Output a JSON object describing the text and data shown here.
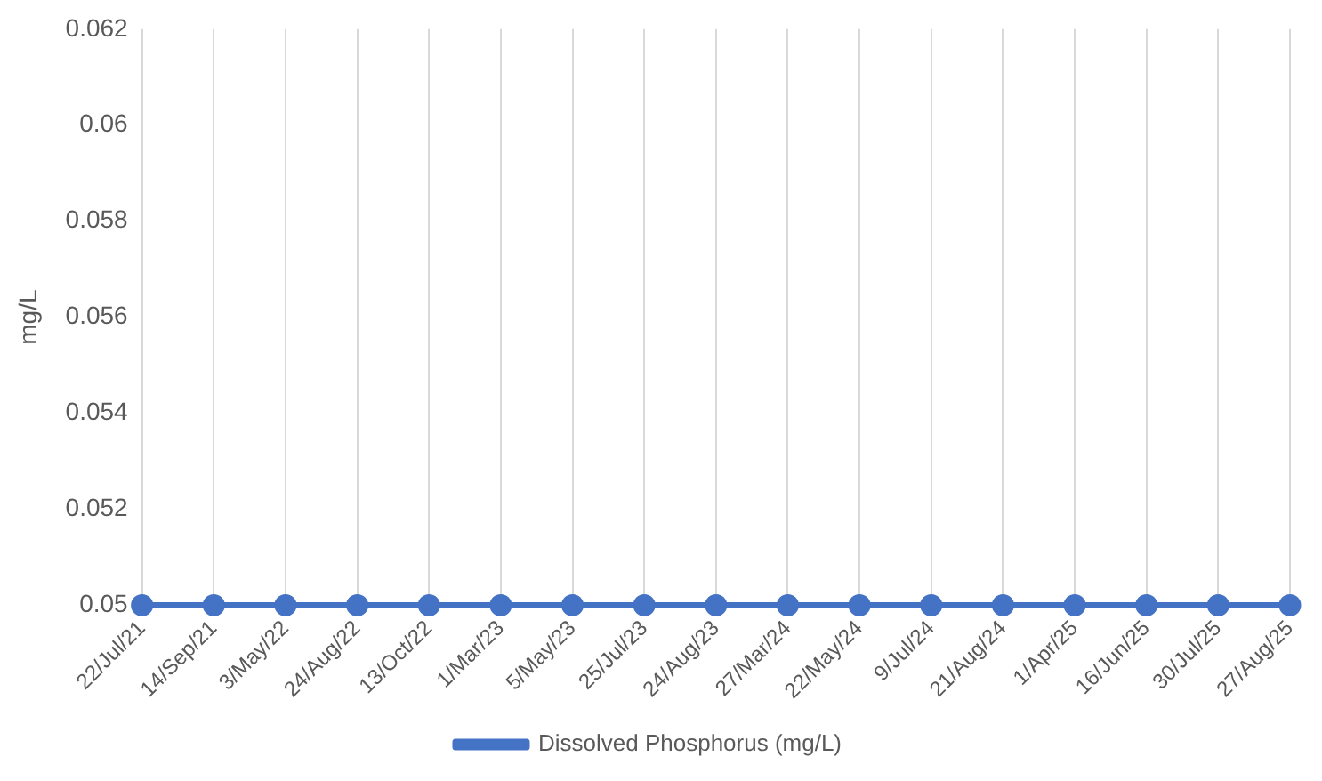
{
  "chart_data": {
    "type": "line",
    "ylabel": "mg/L",
    "categories": [
      "22/Jul/21",
      "14/Sep/21",
      "3/May/22",
      "24/Aug/22",
      "13/Oct/22",
      "1/Mar/23",
      "5/May/23",
      "25/Jul/23",
      "24/Aug/23",
      "27/Mar/24",
      "22/May/24",
      "9/Jul/24",
      "21/Aug/24",
      "1/Apr/25",
      "16/Jun/25",
      "30/Jul/25",
      "27/Aug/25"
    ],
    "series": [
      {
        "name": "Dissolved Phosphorus (mg/L)",
        "color": "#4472c4",
        "values": [
          0.05,
          0.05,
          0.05,
          0.05,
          0.05,
          0.05,
          0.05,
          0.05,
          0.05,
          0.05,
          0.05,
          0.05,
          0.05,
          0.05,
          0.05,
          0.05,
          0.05
        ]
      }
    ],
    "ylim": [
      0.05,
      0.062
    ],
    "yticks": [
      0.05,
      0.052,
      0.054,
      0.056,
      0.058,
      0.06,
      0.062
    ],
    "grid": "x",
    "legend": "bottom",
    "marker": "circle",
    "line_style": "solid"
  }
}
